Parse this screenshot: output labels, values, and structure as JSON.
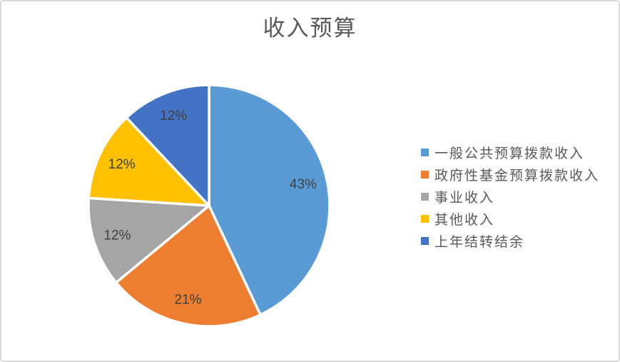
{
  "window": {
    "background_color": "#FFFFFF",
    "border_color": "#D9D9D9"
  },
  "chart_data": {
    "type": "pie",
    "title": "收入预算",
    "title_color": "#595959",
    "categories": [
      "一般公共预算拨款收入",
      "政府性基金预算拨款收入",
      "事业收入",
      "其他收入",
      "上年结转结余"
    ],
    "values": [
      43,
      21,
      12,
      12,
      12
    ],
    "data_labels": [
      "43%",
      "21%",
      "12%",
      "12%",
      "12%"
    ],
    "colors": [
      "#5B9BD5",
      "#ED7D31",
      "#A5A5A5",
      "#FFC000",
      "#4472C4"
    ],
    "label_color": "#404040",
    "slice_separator_color": "#FFFFFF",
    "start_angle_deg": 0,
    "direction": "clockwise",
    "legend_position": "right",
    "legend_text_color": "#595959"
  }
}
